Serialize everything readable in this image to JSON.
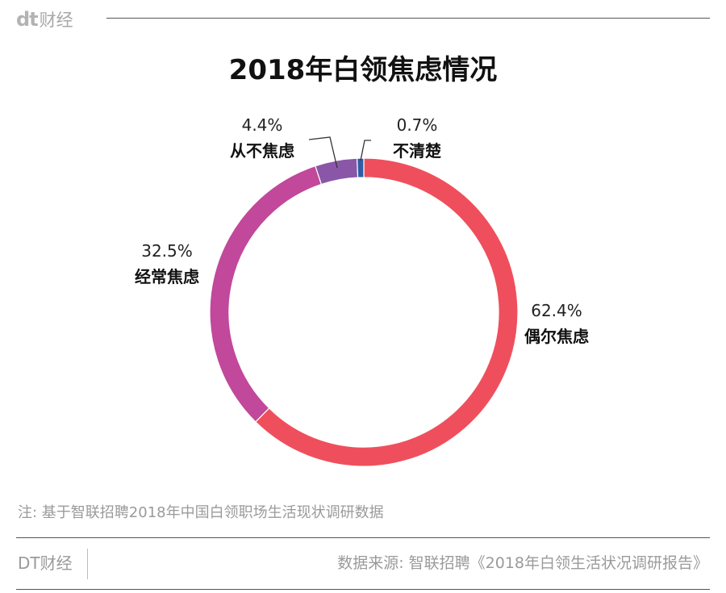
{
  "brand": {
    "logo_text": "dt",
    "logo_cn": "财经"
  },
  "note": "注: 基于智联招聘2018年中国白领职场生活现状调研数据",
  "footer": {
    "brand": "DT财经",
    "source": "数据来源: 智联招聘《2018年白领生活状况调研报告》"
  },
  "chart_data": {
    "type": "pie",
    "variant": "donut",
    "title": "2018年白领焦虑情况",
    "slices": [
      {
        "label": "偶尔焦虑",
        "value": 62.4,
        "value_label": "62.4%",
        "color": "#ef4f5c"
      },
      {
        "label": "经常焦虑",
        "value": 32.5,
        "value_label": "32.5%",
        "color": "#c1489a"
      },
      {
        "label": "从不焦虑",
        "value": 4.4,
        "value_label": "4.4%",
        "color": "#8a57a8"
      },
      {
        "label": "不清楚",
        "value": 0.7,
        "value_label": "0.7%",
        "color": "#2f5da6"
      }
    ]
  }
}
